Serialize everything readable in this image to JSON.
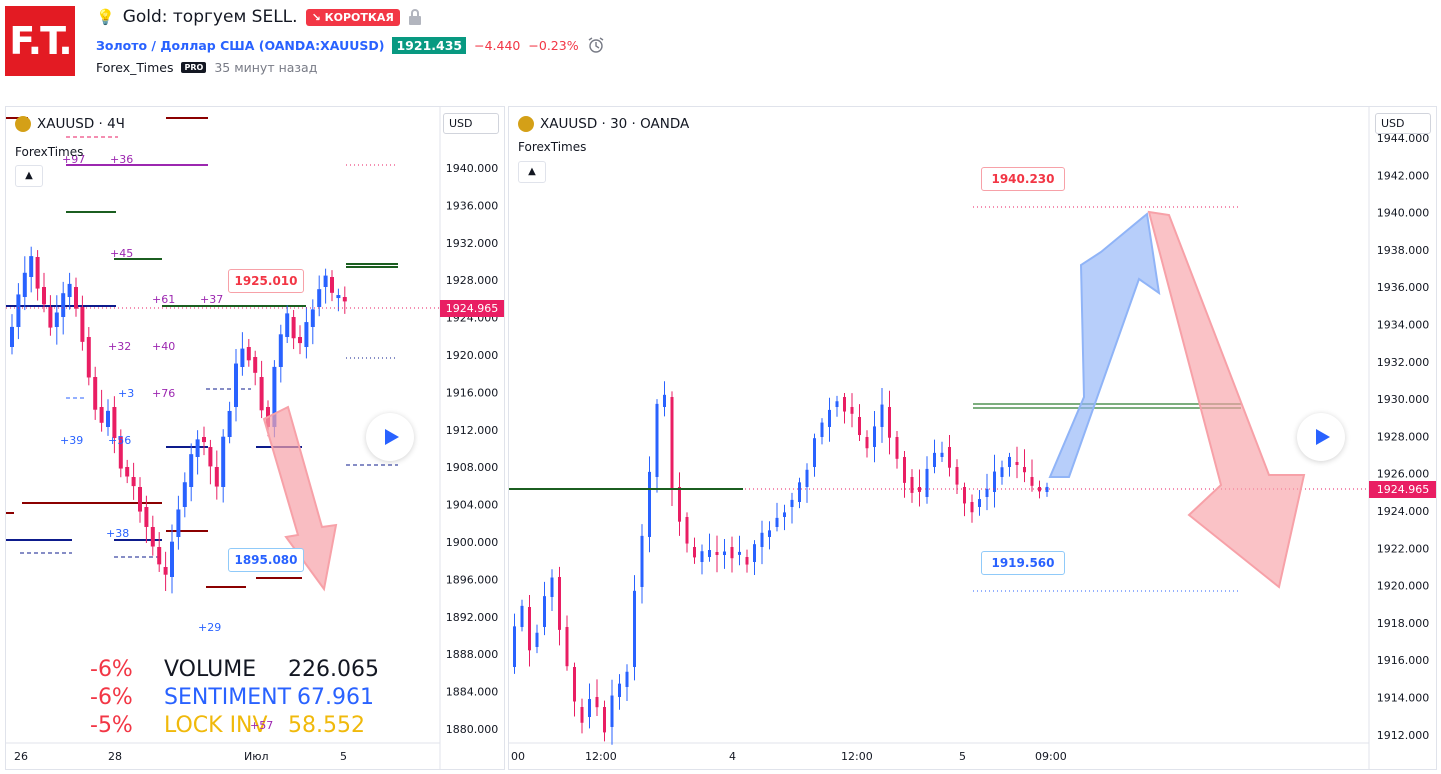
{
  "header": {
    "logo_text": "F.T.",
    "title": "Gold: торгуем SELL.",
    "direction_badge": "↘ КОРОТКАЯ",
    "symbol_link": "Золото / Доллар США",
    "symbol_code": "(OANDA:XAUUSD)",
    "price": "1921.435",
    "change": "−4.440",
    "change_pct": "−0.23%",
    "author": "Forex_Times",
    "author_badge": "PRO",
    "published": "35 минут назад"
  },
  "colors": {
    "accent": "#2962ff",
    "up": "#089981",
    "down": "#f23645",
    "brand": "#e31b23"
  },
  "left_chart": {
    "symbol": "XAUUSD · 4Ч",
    "indicator": "ForexTimes",
    "currency": "USD",
    "last_price": "1924.965",
    "price_ticks": [
      "1940.000",
      "1936.000",
      "1932.000",
      "1928.000",
      "1924.000",
      "1920.000",
      "1916.000",
      "1912.000",
      "1908.000",
      "1904.000",
      "1900.000",
      "1896.000",
      "1892.000",
      "1888.000",
      "1884.000",
      "1880.000"
    ],
    "time_ticks": [
      "26",
      "28",
      "Июл",
      "5"
    ],
    "callout_high": "1925.010",
    "callout_low": "1895.080",
    "level_labels": [
      "+97",
      "+36",
      "+45",
      "+61",
      "+37",
      "+32",
      "+40",
      "+76",
      "+39",
      "+56",
      "+38",
      "+29",
      "+3"
    ],
    "stats": [
      {
        "pct": "-6%",
        "name": "VOLUME",
        "value": "226.065"
      },
      {
        "pct": "-6%",
        "name": "SENTIMENT",
        "value": "67.961"
      },
      {
        "pct": "-5%",
        "name": "LOCK INV",
        "value": "58.552"
      }
    ],
    "stat_overlay": "+57"
  },
  "right_chart": {
    "symbol": "XAUUSD · 30 · OANDA",
    "indicator": "ForexTimes",
    "currency": "USD",
    "last_price": "1924.965",
    "price_ticks": [
      "1944.000",
      "1942.000",
      "1940.000",
      "1938.000",
      "1936.000",
      "1934.000",
      "1932.000",
      "1930.000",
      "1928.000",
      "1926.000",
      "1924.000",
      "1922.000",
      "1920.000",
      "1918.000",
      "1916.000",
      "1914.000",
      "1912.000"
    ],
    "time_ticks": [
      "00",
      "12:00",
      "4",
      "12:00",
      "5",
      "09:00"
    ],
    "target_high": "1940.230",
    "target_low": "1919.560"
  }
}
